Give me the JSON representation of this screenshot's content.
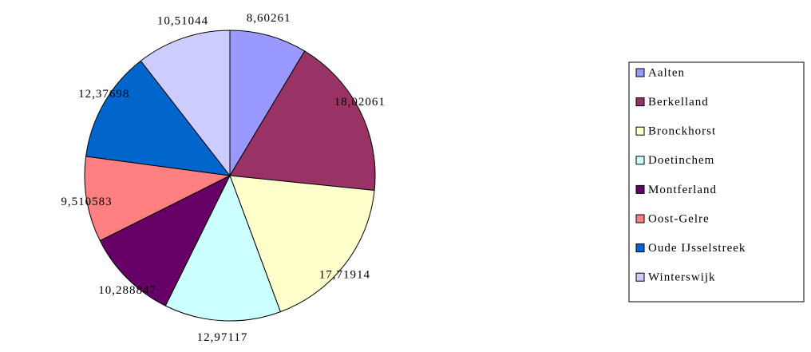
{
  "chart_data": {
    "type": "pie",
    "categories": [
      "Aalten",
      "Berkelland",
      "Bronckhorst",
      "Doetinchem",
      "Montferland",
      "Oost-Gelre",
      "Oude IJsselstreek",
      "Winterswijk"
    ],
    "values": [
      8.60261,
      18.02061,
      17.71914,
      12.97117,
      10.288847,
      9.510583,
      12.37698,
      10.51044
    ],
    "value_labels": [
      "8,60261",
      "18,02061",
      "17,71914",
      "12,97117",
      "10,288847",
      "9,510583",
      "12,37698",
      "10,51044"
    ],
    "colors": [
      "#9999ff",
      "#993366",
      "#ffffcc",
      "#ccffff",
      "#660066",
      "#ff8080",
      "#0066cc",
      "#ccccff"
    ],
    "legend": "right"
  }
}
